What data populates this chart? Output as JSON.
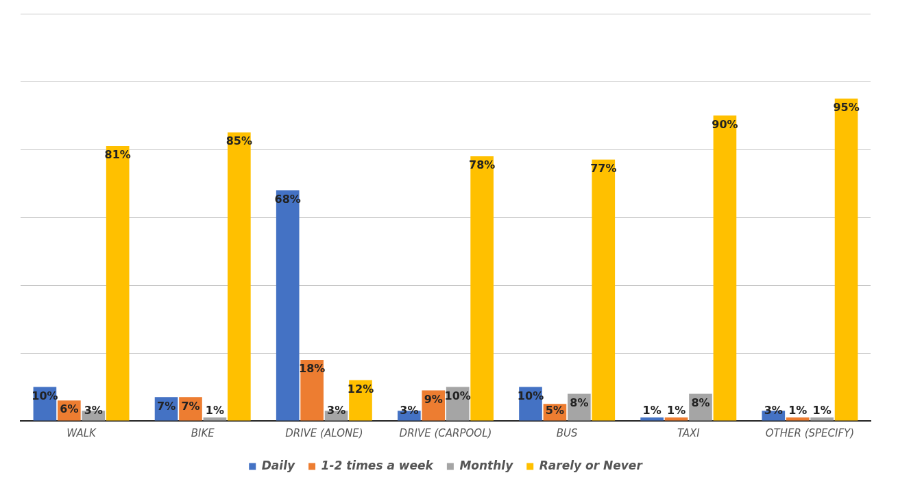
{
  "chart_data": {
    "type": "bar",
    "categories": [
      "WALK",
      "BIKE",
      "DRIVE (ALONE)",
      "DRIVE (CARPOOL)",
      "BUS",
      "TAXI",
      "OTHER (SPECIFY)"
    ],
    "series": [
      {
        "name": "Daily",
        "color": "#4472c4",
        "values": [
          10,
          7,
          68,
          3,
          10,
          1,
          3
        ],
        "value_labels": [
          "10%",
          "7%",
          "68%",
          "3%",
          "10%",
          "1%",
          "3%"
        ]
      },
      {
        "name": "1-2 times a week",
        "color": "#ed7d31",
        "values": [
          6,
          7,
          18,
          9,
          5,
          1,
          1
        ],
        "value_labels": [
          "6%",
          "7%",
          "18%",
          "9%",
          "5%",
          "1%",
          "1%"
        ]
      },
      {
        "name": "Monthly",
        "color": "#a5a5a5",
        "values": [
          3,
          1,
          3,
          10,
          8,
          8,
          1
        ],
        "value_labels": [
          "3%",
          "1%",
          "3%",
          "10%",
          "8%",
          "8%",
          "1%"
        ]
      },
      {
        "name": "Rarely or Never",
        "color": "#ffc000",
        "values": [
          81,
          85,
          12,
          78,
          77,
          90,
          95
        ],
        "value_labels": [
          "81%",
          "85%",
          "12%",
          "78%",
          "77%",
          "90%",
          "95%"
        ]
      }
    ],
    "ylim": [
      0,
      120
    ],
    "yticks": [
      0,
      {
        "value": 20,
        "label": null
      },
      {
        "value": 40,
        "label": null
      },
      {
        "value": 60,
        "label": null
      },
      {
        "value": 80,
        "label": null
      },
      {
        "value": 100,
        "label": null
      },
      {
        "value": 120,
        "label": null
      }
    ],
    "tick_labels": "x",
    "grid": "y",
    "legend": "bottom"
  }
}
